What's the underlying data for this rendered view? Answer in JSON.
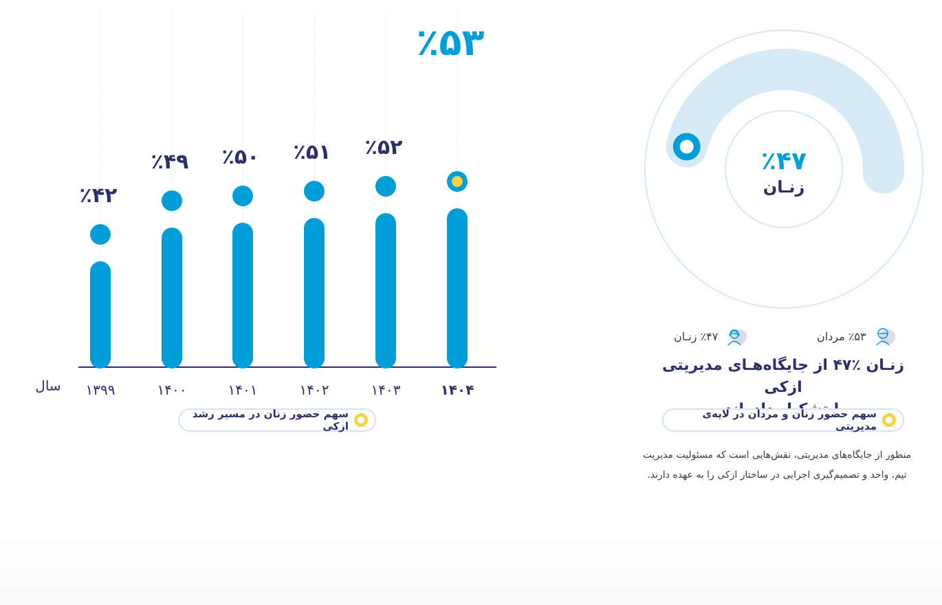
{
  "chart_data": [
    {
      "type": "bar",
      "categories": [
        "۱۳۹۹",
        "۱۴۰۰",
        "۱۴۰۱",
        "۱۴۰۲",
        "۱۴۰۳",
        "۱۴۰۴"
      ],
      "values": [
        42,
        49,
        50,
        51,
        52,
        53
      ],
      "value_labels": [
        "٪۴۲",
        "٪۴۹",
        "٪۵۰",
        "٪۵۱",
        "٪۵۲",
        "٪۵۳"
      ],
      "xlabel": "سال",
      "legend": "سهم حضور زنان در مسیر رشد ازکی",
      "highlight_index": 5,
      "colors": {
        "bar": "#009ed8",
        "highlight": "#f7d24a",
        "axis": "#2b2f6b"
      }
    },
    {
      "type": "pie",
      "style": "radial-progress",
      "slices": [
        {
          "name": "زنان",
          "value": 47,
          "label": "٪۴۷ زنـان"
        },
        {
          "name": "مردان",
          "value": 53,
          "label": "٪۵۳ مردان"
        }
      ],
      "center_value": "٪۴۷",
      "center_label": "زنـان",
      "legend": "سهم حضور زنان و مردان در لایه‌ی مدیریتی",
      "colors": {
        "track": "#d5e9f6",
        "marker": "#009ed8"
      }
    }
  ],
  "right_panel": {
    "heading_line1": "زنـان ٪۴۷ از جایگاه‌هـای مدیریتی ازکی",
    "heading_line2": "را  تشکیل  داده‌اند.",
    "description_line1": "منظور از جایگاه‌های مدیریتی، نقش‌هایی است که مسئولیت مدیریت",
    "description_line2": "تیم، واحد و تصمیم‌گیری اجرایی در ساختار ازکی را به عهده دارند.",
    "legend_icons": [
      "person-icon",
      "person-icon"
    ]
  }
}
